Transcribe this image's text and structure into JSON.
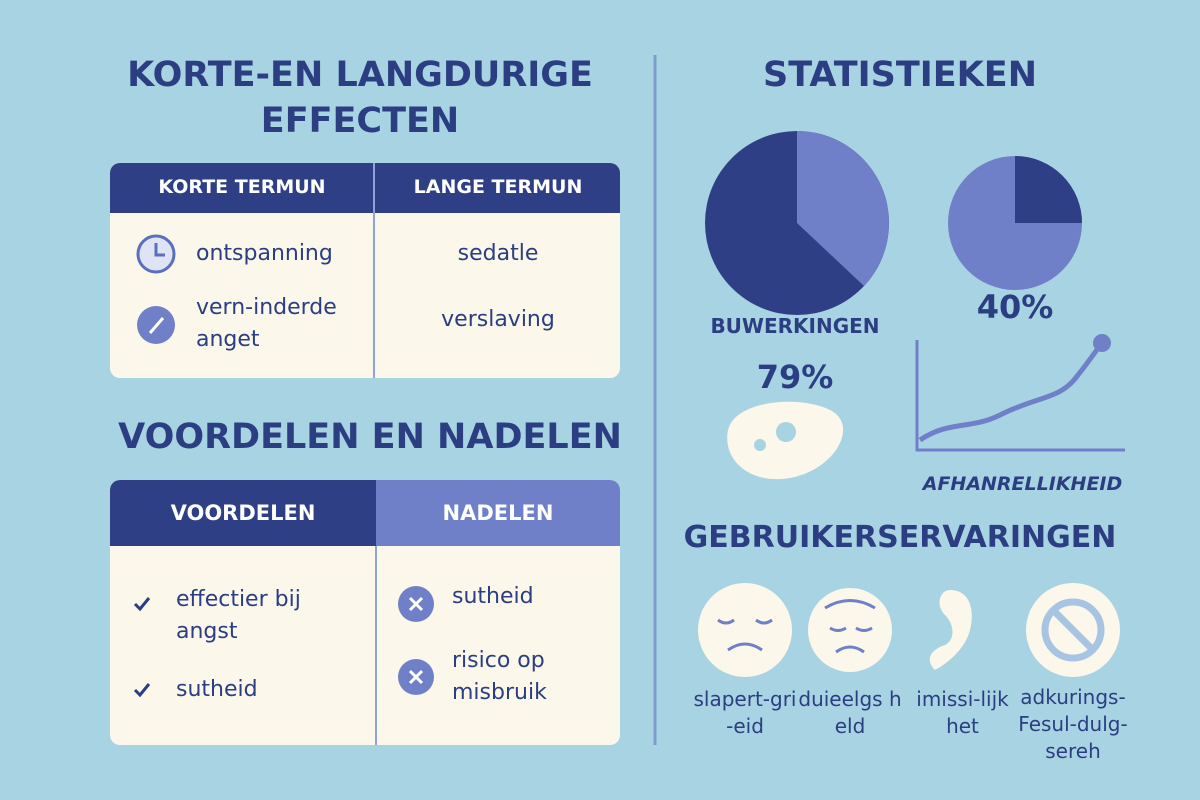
{
  "left": {
    "effects": {
      "title": "KORTE-EN LANGDURIGE EFFECTEN",
      "headers": [
        "KORTE TERMUN",
        "LANGE TERMUN"
      ],
      "short_term": [
        "ontspanning",
        "vern-inderde anget"
      ],
      "long_term": [
        "sedatle",
        "verslaving"
      ]
    },
    "pros_cons": {
      "title": "VOORDELEN EN NADELEN",
      "headers": [
        "VOORDELEN",
        "NADELEN"
      ],
      "pros": [
        "effectier bij angst",
        "sutheid"
      ],
      "cons": [
        "sutheid",
        "risico op misbruik"
      ]
    }
  },
  "right": {
    "statistics": {
      "title": "STATISTIEKEN",
      "pie_label": "BUWERKINGEN",
      "pie_value": "79%",
      "second_value": "40%",
      "line_label": "AFHANRELLIKHEID"
    },
    "experiences": {
      "title": "GEBRUIKERSERVARINGEN",
      "items": [
        "slapert-gri-eid",
        "duieelgs held",
        "imissi-lijkhet",
        "adkurings-Fesul-dulg-sereh"
      ]
    }
  }
}
